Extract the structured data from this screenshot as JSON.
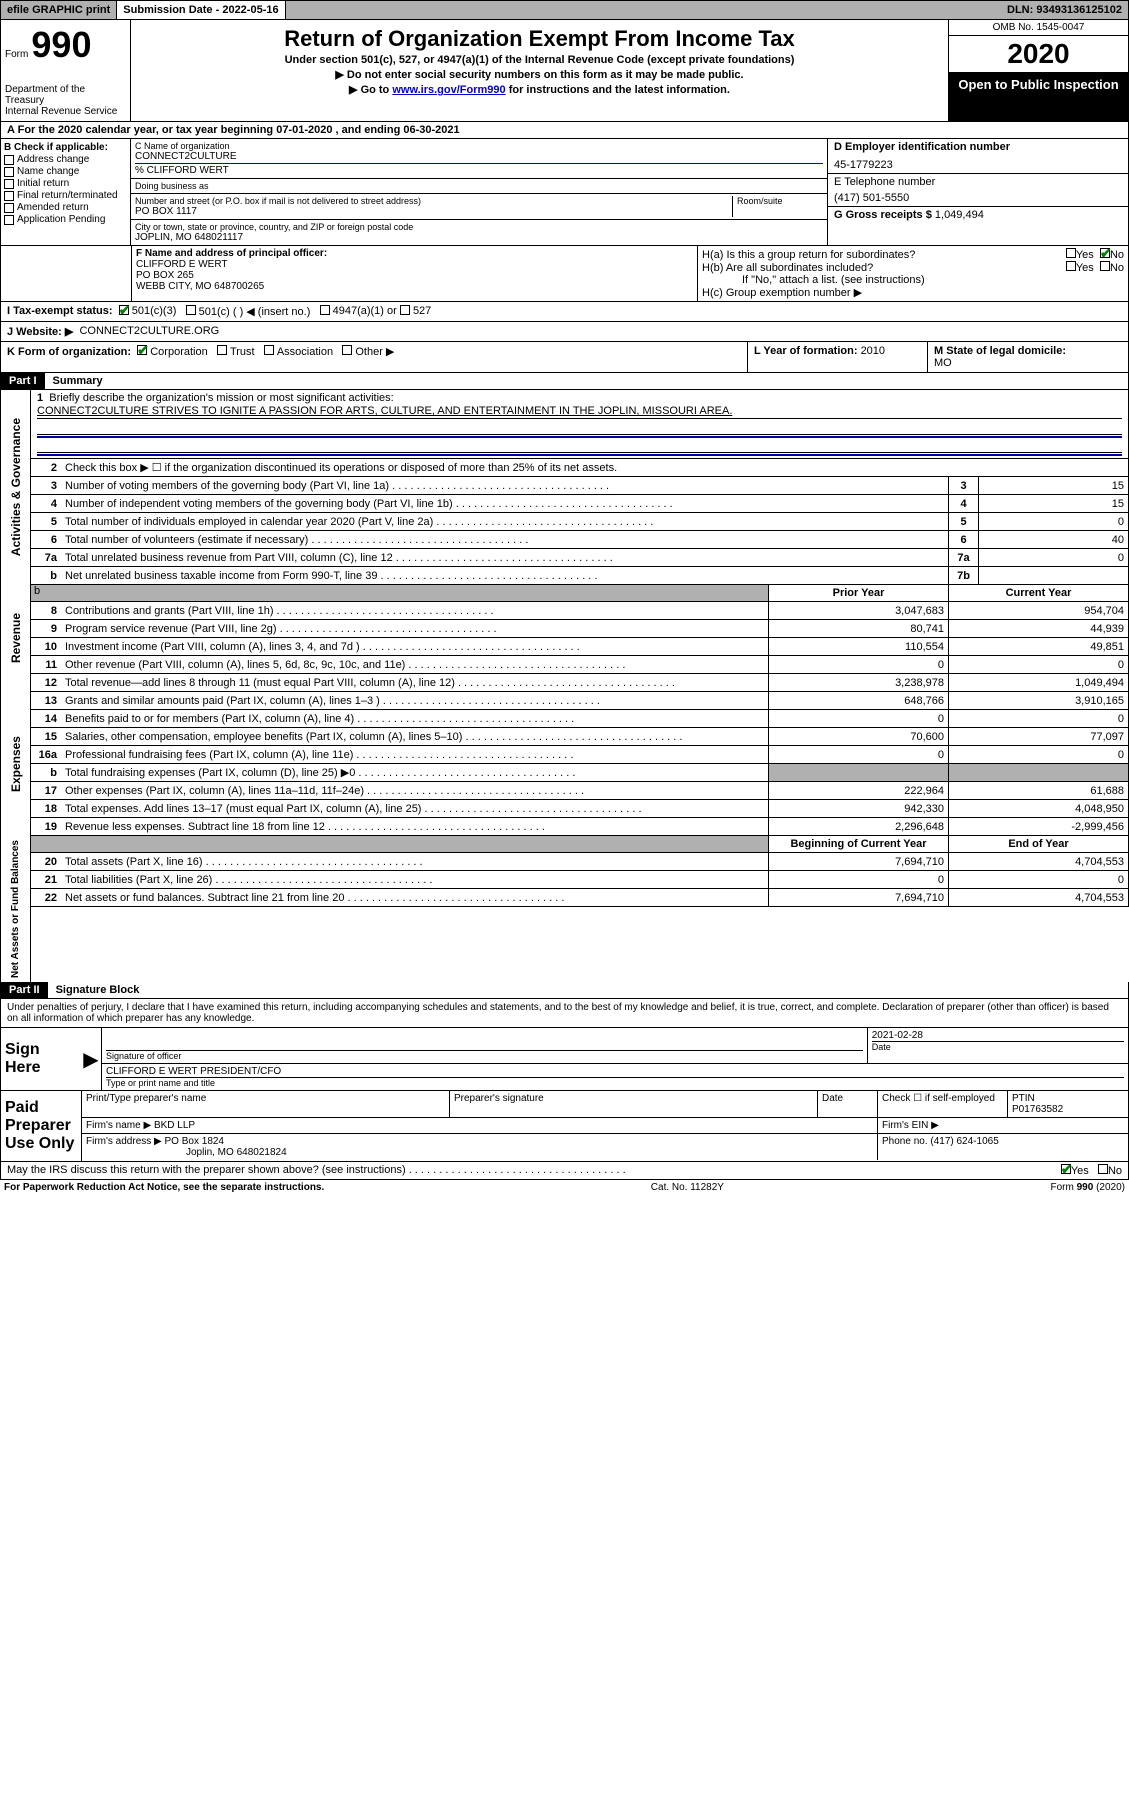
{
  "topbar": {
    "efile": "efile GRAPHIC print",
    "submission_label": "Submission Date - ",
    "submission_date": "2022-05-16",
    "dln_label": "DLN: ",
    "dln": "93493136125102"
  },
  "header": {
    "form_prefix": "Form",
    "form_number": "990",
    "dept": "Department of the Treasury\nInternal Revenue Service",
    "title": "Return of Organization Exempt From Income Tax",
    "subtitle": "Under section 501(c), 527, or 4947(a)(1) of the Internal Revenue Code (except private foundations)",
    "instr1_prefix": "▶ Do not enter social security numbers on this form as it may be made public.",
    "instr2_prefix": "▶ Go to ",
    "instr2_link": "www.irs.gov/Form990",
    "instr2_suffix": " for instructions and the latest information.",
    "omb": "OMB No. 1545-0047",
    "year": "2020",
    "inspect": "Open to Public Inspection"
  },
  "line_a": "For the 2020 calendar year, or tax year beginning 07-01-2020    , and ending 06-30-2021",
  "section_b": {
    "label": "B Check if applicable:",
    "opts": [
      "Address change",
      "Name change",
      "Initial return",
      "Final return/terminated",
      "Amended return",
      "Application Pending"
    ]
  },
  "section_c": {
    "name_label": "C Name of organization",
    "name": "CONNECT2CULTURE",
    "care_of": "% CLIFFORD WERT",
    "dba_label": "Doing business as",
    "street_label": "Number and street (or P.O. box if mail is not delivered to street address)",
    "room_label": "Room/suite",
    "street": "PO BOX 1117",
    "city_label": "City or town, state or province, country, and ZIP or foreign postal code",
    "city": "JOPLIN, MO  648021117"
  },
  "section_d": {
    "ein_label": "D Employer identification number",
    "ein": "45-1779223",
    "phone_label": "E Telephone number",
    "phone": "(417) 501-5550",
    "gross_label": "G Gross receipts $ ",
    "gross": "1,049,494"
  },
  "section_f": {
    "label": "F  Name and address of principal officer:",
    "name": "CLIFFORD E WERT",
    "addr1": "PO BOX 265",
    "addr2": "WEBB CITY, MO  648700265"
  },
  "section_h": {
    "ha": "H(a)  Is this a group return for subordinates?",
    "hb": "H(b)  Are all subordinates included?",
    "hb_note": "If \"No,\" attach a list. (see instructions)",
    "hc": "H(c)  Group exemption number ▶",
    "yes": "Yes",
    "no": "No"
  },
  "line_i": {
    "label": "I   Tax-exempt status:",
    "o1": "501(c)(3)",
    "o2": "501(c) (    ) ◀ (insert no.)",
    "o3": "4947(a)(1) or",
    "o4": "527"
  },
  "line_j": {
    "label": "J   Website: ▶",
    "value": "CONNECT2CULTURE.ORG"
  },
  "line_k": {
    "label": "K Form of organization:",
    "o1": "Corporation",
    "o2": "Trust",
    "o3": "Association",
    "o4": "Other ▶"
  },
  "line_l": {
    "label": "L Year of formation: ",
    "value": "2010"
  },
  "line_m": {
    "label": "M State of legal domicile:",
    "value": "MO"
  },
  "part1": {
    "header": "Part I",
    "title": "Summary",
    "q1_label": "Briefly describe the organization's mission or most significant activities:",
    "q1_text": "CONNECT2CULTURE STRIVES TO IGNITE A PASSION FOR ARTS, CULTURE, AND ENTERTAINMENT IN THE JOPLIN, MISSOURI AREA.",
    "q2": "Check this box ▶ ☐  if the organization discontinued its operations or disposed of more than 25% of its net assets.",
    "lines_gov": [
      {
        "num": "3",
        "text": "Number of voting members of the governing body (Part VI, line 1a)",
        "box": "3",
        "val": "15"
      },
      {
        "num": "4",
        "text": "Number of independent voting members of the governing body (Part VI, line 1b)",
        "box": "4",
        "val": "15"
      },
      {
        "num": "5",
        "text": "Total number of individuals employed in calendar year 2020 (Part V, line 2a)",
        "box": "5",
        "val": "0"
      },
      {
        "num": "6",
        "text": "Total number of volunteers (estimate if necessary)",
        "box": "6",
        "val": "40"
      },
      {
        "num": "7a",
        "text": "Total unrelated business revenue from Part VIII, column (C), line 12",
        "box": "7a",
        "val": "0"
      },
      {
        "num": "b",
        "text": "Net unrelated business taxable income from Form 990-T, line 39",
        "box": "7b",
        "val": ""
      }
    ],
    "col_prior": "Prior Year",
    "col_current": "Current Year",
    "lines_rev": [
      {
        "num": "8",
        "text": "Contributions and grants (Part VIII, line 1h)",
        "prior": "3,047,683",
        "curr": "954,704"
      },
      {
        "num": "9",
        "text": "Program service revenue (Part VIII, line 2g)",
        "prior": "80,741",
        "curr": "44,939"
      },
      {
        "num": "10",
        "text": "Investment income (Part VIII, column (A), lines 3, 4, and 7d )",
        "prior": "110,554",
        "curr": "49,851"
      },
      {
        "num": "11",
        "text": "Other revenue (Part VIII, column (A), lines 5, 6d, 8c, 9c, 10c, and 11e)",
        "prior": "0",
        "curr": "0"
      },
      {
        "num": "12",
        "text": "Total revenue—add lines 8 through 11 (must equal Part VIII, column (A), line 12)",
        "prior": "3,238,978",
        "curr": "1,049,494"
      }
    ],
    "lines_exp": [
      {
        "num": "13",
        "text": "Grants and similar amounts paid (Part IX, column (A), lines 1–3 )",
        "prior": "648,766",
        "curr": "3,910,165"
      },
      {
        "num": "14",
        "text": "Benefits paid to or for members (Part IX, column (A), line 4)",
        "prior": "0",
        "curr": "0"
      },
      {
        "num": "15",
        "text": "Salaries, other compensation, employee benefits (Part IX, column (A), lines 5–10)",
        "prior": "70,600",
        "curr": "77,097"
      },
      {
        "num": "16a",
        "text": "Professional fundraising fees (Part IX, column (A), line 11e)",
        "prior": "0",
        "curr": "0"
      },
      {
        "num": "b",
        "text": "Total fundraising expenses (Part IX, column (D), line 25) ▶0",
        "prior": "SHADED",
        "curr": "SHADED"
      },
      {
        "num": "17",
        "text": "Other expenses (Part IX, column (A), lines 11a–11d, 11f–24e)",
        "prior": "222,964",
        "curr": "61,688"
      },
      {
        "num": "18",
        "text": "Total expenses. Add lines 13–17 (must equal Part IX, column (A), line 25)",
        "prior": "942,330",
        "curr": "4,048,950"
      },
      {
        "num": "19",
        "text": "Revenue less expenses. Subtract line 18 from line 12",
        "prior": "2,296,648",
        "curr": "-2,999,456"
      }
    ],
    "col_begin": "Beginning of Current Year",
    "col_end": "End of Year",
    "lines_net": [
      {
        "num": "20",
        "text": "Total assets (Part X, line 16)",
        "prior": "7,694,710",
        "curr": "4,704,553"
      },
      {
        "num": "21",
        "text": "Total liabilities (Part X, line 26)",
        "prior": "0",
        "curr": "0"
      },
      {
        "num": "22",
        "text": "Net assets or fund balances. Subtract line 21 from line 20",
        "prior": "7,694,710",
        "curr": "4,704,553"
      }
    ]
  },
  "vlabels": {
    "gov": "Activities & Governance",
    "rev": "Revenue",
    "exp": "Expenses",
    "net": "Net Assets or Fund Balances"
  },
  "part2": {
    "header": "Part II",
    "title": "Signature Block",
    "declaration": "Under penalties of perjury, I declare that I have examined this return, including accompanying schedules and statements, and to the best of my knowledge and belief, it is true, correct, and complete. Declaration of preparer (other than officer) is based on all information of which preparer has any knowledge.",
    "sign_here": "Sign Here",
    "sig_officer_label": "Signature of officer",
    "date_label": "Date",
    "date_val": "2021-02-28",
    "officer_name": "CLIFFORD E WERT PRESIDENT/CFO",
    "officer_name_label": "Type or print name and title",
    "paid_prep": "Paid Preparer Use Only",
    "prep_name_label": "Print/Type preparer's name",
    "prep_sig_label": "Preparer's signature",
    "prep_date_label": "Date",
    "check_self": "Check ☐ if self-employed",
    "ptin_label": "PTIN",
    "ptin": "P01763582",
    "firm_name_label": "Firm's name     ▶",
    "firm_name": "BKD LLP",
    "firm_ein_label": "Firm's EIN ▶",
    "firm_addr_label": "Firm's address ▶",
    "firm_addr1": "PO Box 1824",
    "firm_addr2": "Joplin, MO  648021824",
    "firm_phone_label": "Phone no. ",
    "firm_phone": "(417) 624-1065",
    "discuss": "May the IRS discuss this return with the preparer shown above? (see instructions)",
    "yes": "Yes",
    "no": "No"
  },
  "footer": {
    "paperwork": "For Paperwork Reduction Act Notice, see the separate instructions.",
    "catno": "Cat. No. 11282Y",
    "formref": "Form 990 (2020)"
  },
  "colors": {
    "topbar_bg": "#b0b0b0",
    "black": "#000000",
    "white": "#ffffff",
    "link": "#0000cc",
    "check_green": "#008000"
  }
}
